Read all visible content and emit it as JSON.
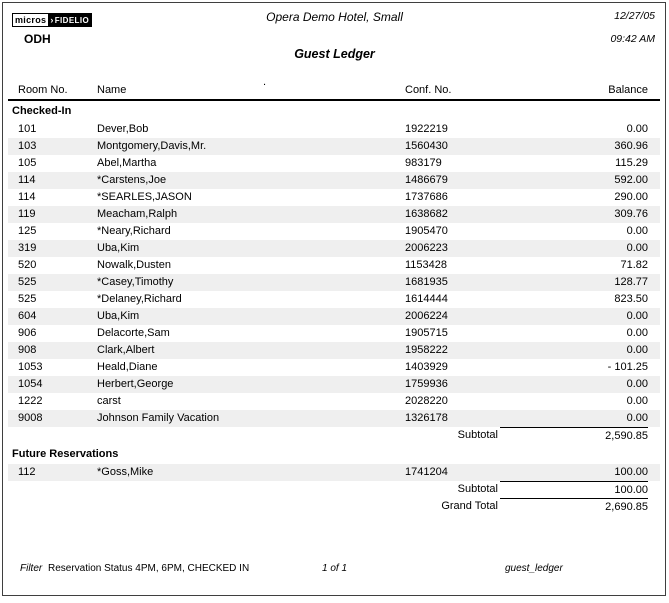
{
  "header": {
    "logo": {
      "micros": "micros",
      "arrow": "›",
      "fidelio": "FIDELIO"
    },
    "property_code": "ODH",
    "hotel_name": "Opera Demo Hotel, Small",
    "report_title": "Guest Ledger",
    "date": "12/27/05",
    "time": "09:42 AM",
    "stray_mark": "."
  },
  "columns": {
    "room": "Room No.",
    "name": "Name",
    "conf": "Conf. No.",
    "balance": "Balance"
  },
  "sections": [
    {
      "heading": "Checked-In",
      "first_row_shaded": false,
      "rows": [
        {
          "room": "101",
          "name": "Dever,Bob",
          "conf": "1922219",
          "balance": "0.00"
        },
        {
          "room": "103",
          "name": "Montgomery,Davis,Mr.",
          "conf": "1560430",
          "balance": "360.96"
        },
        {
          "room": "105",
          "name": "Abel,Martha",
          "conf": "983179",
          "balance": "115.29"
        },
        {
          "room": "114",
          "name": "*Carstens,Joe",
          "conf": "1486679",
          "balance": "592.00"
        },
        {
          "room": "114",
          "name": "*SEARLES,JASON",
          "conf": "1737686",
          "balance": "290.00"
        },
        {
          "room": "119",
          "name": "Meacham,Ralph",
          "conf": "1638682",
          "balance": "309.76"
        },
        {
          "room": "125",
          "name": "*Neary,Richard",
          "conf": "1905470",
          "balance": "0.00"
        },
        {
          "room": "319",
          "name": "Uba,Kim",
          "conf": "2006223",
          "balance": "0.00"
        },
        {
          "room": "520",
          "name": "Nowalk,Dusten",
          "conf": "1153428",
          "balance": "71.82"
        },
        {
          "room": "525",
          "name": "*Casey,Timothy",
          "conf": "1681935",
          "balance": "128.77"
        },
        {
          "room": "525",
          "name": "*Delaney,Richard",
          "conf": "1614444",
          "balance": "823.50"
        },
        {
          "room": "604",
          "name": "Uba,Kim",
          "conf": "2006224",
          "balance": "0.00"
        },
        {
          "room": "906",
          "name": "Delacorte,Sam",
          "conf": "1905715",
          "balance": "0.00"
        },
        {
          "room": "908",
          "name": "Clark,Albert",
          "conf": "1958222",
          "balance": "0.00"
        },
        {
          "room": "1053",
          "name": "Heald,Diane",
          "conf": "1403929",
          "balance": "- 101.25"
        },
        {
          "room": "1054",
          "name": "Herbert,George",
          "conf": "1759936",
          "balance": "0.00"
        },
        {
          "room": "1222",
          "name": "carst",
          "conf": "2028220",
          "balance": "0.00"
        },
        {
          "room": "9008",
          "name": "Johnson Family Vacation",
          "conf": "1326178",
          "balance": "0.00"
        }
      ],
      "subtotal_label": "Subtotal",
      "subtotal": "2,590.85"
    },
    {
      "heading": "Future Reservations",
      "first_row_shaded": true,
      "rows": [
        {
          "room": "112",
          "name": "*Goss,Mike",
          "conf": "1741204",
          "balance": "100.00"
        }
      ],
      "subtotal_label": "Subtotal",
      "subtotal": "100.00"
    }
  ],
  "grand_total": {
    "label": "Grand Total",
    "value": "2,690.85"
  },
  "footer": {
    "filter_label": "Filter",
    "filter_value": "Reservation Status 4PM, 6PM, CHECKED IN",
    "page_number": "1 of 1",
    "report_name": "guest_ledger"
  },
  "colors": {
    "stripe": "#efefef",
    "rule": "#000000",
    "page_border": "#3f3f3f"
  }
}
